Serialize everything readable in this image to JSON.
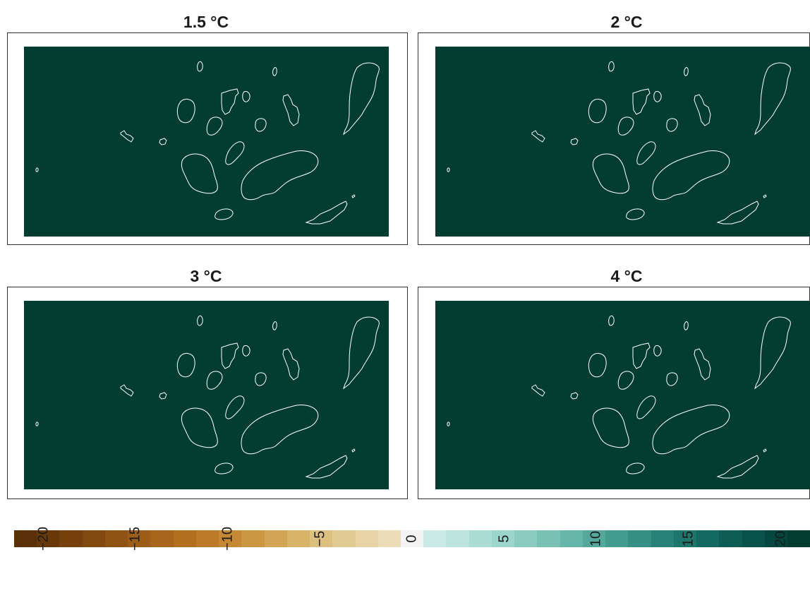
{
  "panels": [
    {
      "title": "1.5 °C"
    },
    {
      "title": "2 °C"
    },
    {
      "title": "3 °C"
    },
    {
      "title": "4 °C"
    }
  ],
  "map": {
    "fill_color": "#033D31",
    "outline_color": "#ffffff"
  },
  "colorbar": {
    "tick_labels": [
      "−20",
      "−15",
      "−10",
      "−5",
      "0",
      "5",
      "10",
      "15",
      "20"
    ],
    "colors": [
      "#5A3008",
      "#683809",
      "#76410C",
      "#834A0F",
      "#8F5313",
      "#9B5D17",
      "#A7661C",
      "#B26F20",
      "#BD7A28",
      "#C58834",
      "#CC9743",
      "#D2A556",
      "#D8B36A",
      "#DDBF7F",
      "#E2CA93",
      "#E7D3A6",
      "#ECDCB8",
      "#F4F4F4",
      "#CBEAE6",
      "#BCE4DE",
      "#ACDDD5",
      "#9CD5CB",
      "#8BCBC0",
      "#79C1B5",
      "#66B6A9",
      "#54A99C",
      "#449C8F",
      "#358F83",
      "#288277",
      "#1D756B",
      "#146960",
      "#0D5D55",
      "#08524A",
      "#044640",
      "#033D31"
    ]
  }
}
